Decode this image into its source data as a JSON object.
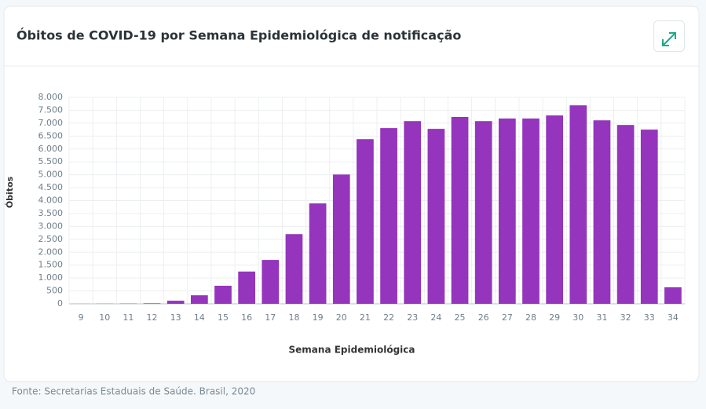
{
  "chart_data": {
    "type": "bar",
    "title": "Óbitos de COVID-19 por Semana Epidemiológica de notificação",
    "x_label": "Semana Epidemiológica",
    "y_label": "Óbitos",
    "source": "Fonte: Secretarias Estaduais de Saúde. Brasil, 2020",
    "categories": [
      "9",
      "10",
      "11",
      "12",
      "13",
      "14",
      "15",
      "16",
      "17",
      "18",
      "19",
      "20",
      "21",
      "22",
      "23",
      "24",
      "25",
      "26",
      "27",
      "28",
      "29",
      "30",
      "31",
      "32",
      "33",
      "34"
    ],
    "values": [
      2,
      5,
      9,
      20,
      120,
      330,
      700,
      1250,
      1700,
      2700,
      3890,
      5010,
      6380,
      6810,
      7080,
      6780,
      7240,
      7080,
      7180,
      7180,
      7300,
      7690,
      7110,
      6930,
      6750,
      640
    ],
    "color": "#9534bd",
    "ylim": [
      0,
      8000
    ],
    "yticks": [
      0,
      500,
      {
        "value": 1000,
        "label": "1.000"
      },
      {
        "value": 1500,
        "label": "1.500"
      },
      {
        "value": 2000,
        "label": "2.000"
      },
      {
        "value": 2500,
        "label": "2.500"
      },
      {
        "value": 3000,
        "label": "3.000"
      },
      {
        "value": 3500,
        "label": "3.500"
      },
      {
        "value": 4000,
        "label": "4.000"
      },
      {
        "value": 4500,
        "label": "4.500"
      },
      {
        "value": 5000,
        "label": "5.000"
      },
      {
        "value": 5500,
        "label": "5.500"
      },
      {
        "value": 6000,
        "label": "6.000"
      },
      {
        "value": 6500,
        "label": "6.500"
      },
      {
        "value": 7000,
        "label": "7.000"
      },
      {
        "value": 7500,
        "label": "7.500"
      },
      {
        "value": 8000,
        "label": "8.000"
      }
    ],
    "grid": true
  }
}
